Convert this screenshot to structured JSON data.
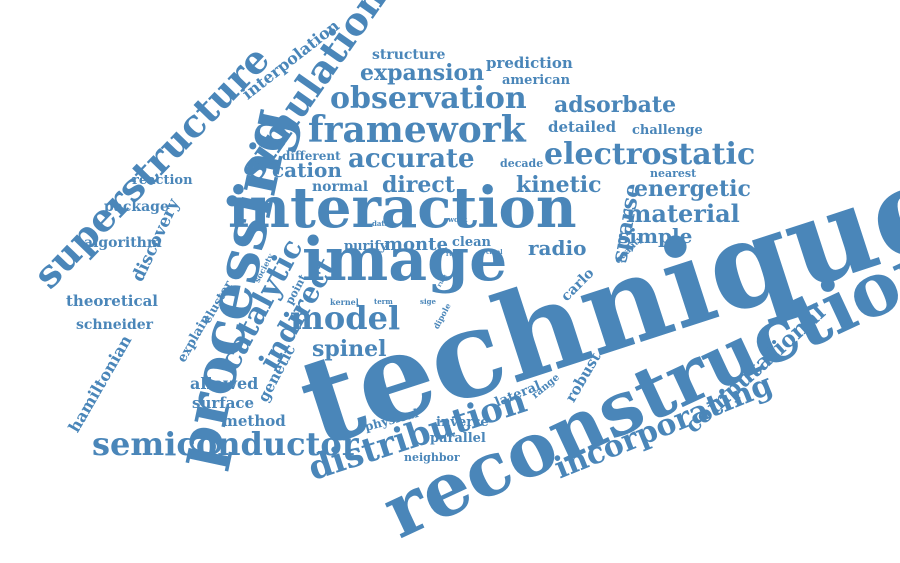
{
  "color": "#4a86b9",
  "words": {
    "technique": "technique",
    "reconstruction": "reconstruction",
    "image": "image",
    "interaction": "interaction",
    "processing": "processing",
    "superstructure": "superstructure",
    "simulation": "simulation",
    "framework": "framework",
    "observation": "observation",
    "electrostatic": "electrostatic",
    "semiconductor": "semiconductor",
    "distribution": "distribution",
    "incorporating": "incorporating",
    "model": "model",
    "accurate": "accurate",
    "expansion": "expansion",
    "catalytic": "catalytic",
    "indirect": "indirect",
    "material": "material",
    "adsorbate": "adsorbate",
    "kinetic": "kinetic",
    "direct": "direct",
    "energetic": "energetic",
    "sparse": "sparse",
    "computational": "computational",
    "spinel": "spinel",
    "cation": "cation",
    "interpolation": "interpolation",
    "structure": "structure",
    "prediction": "prediction",
    "american": "american",
    "detailed": "detailed",
    "challenge": "challenge",
    "different": "different",
    "decade": "decade",
    "nearest": "nearest",
    "normal": "normal",
    "reaction": "reaction",
    "package": "package",
    "discovery": "discovery",
    "algorithm": "algorithm",
    "simple": "simple",
    "radio": "radio",
    "monte": "monte",
    "purify": "purify",
    "clean": "clean",
    "carlo": "carlo",
    "quality": "quality",
    "theoretical": "theoretical",
    "schneider": "schneider",
    "explain": "explain",
    "cluster": "cluster",
    "hamiltonian": "hamiltonian",
    "allowed": "allowed",
    "surface": "surface",
    "method": "method",
    "genetic": "genetic",
    "point": "point",
    "society": "society",
    "data": "data",
    "work": "work",
    "rule": "rule",
    "catal": "catal",
    "kernel": "kernel",
    "term": "term",
    "sige": "sige",
    "dipole": "dipole",
    "physical": "physical",
    "lateral": "lateral",
    "range": "range",
    "robust": "robust",
    "inverse": "inverse",
    "parallel": "parallel",
    "neighbor": "neighbor"
  }
}
